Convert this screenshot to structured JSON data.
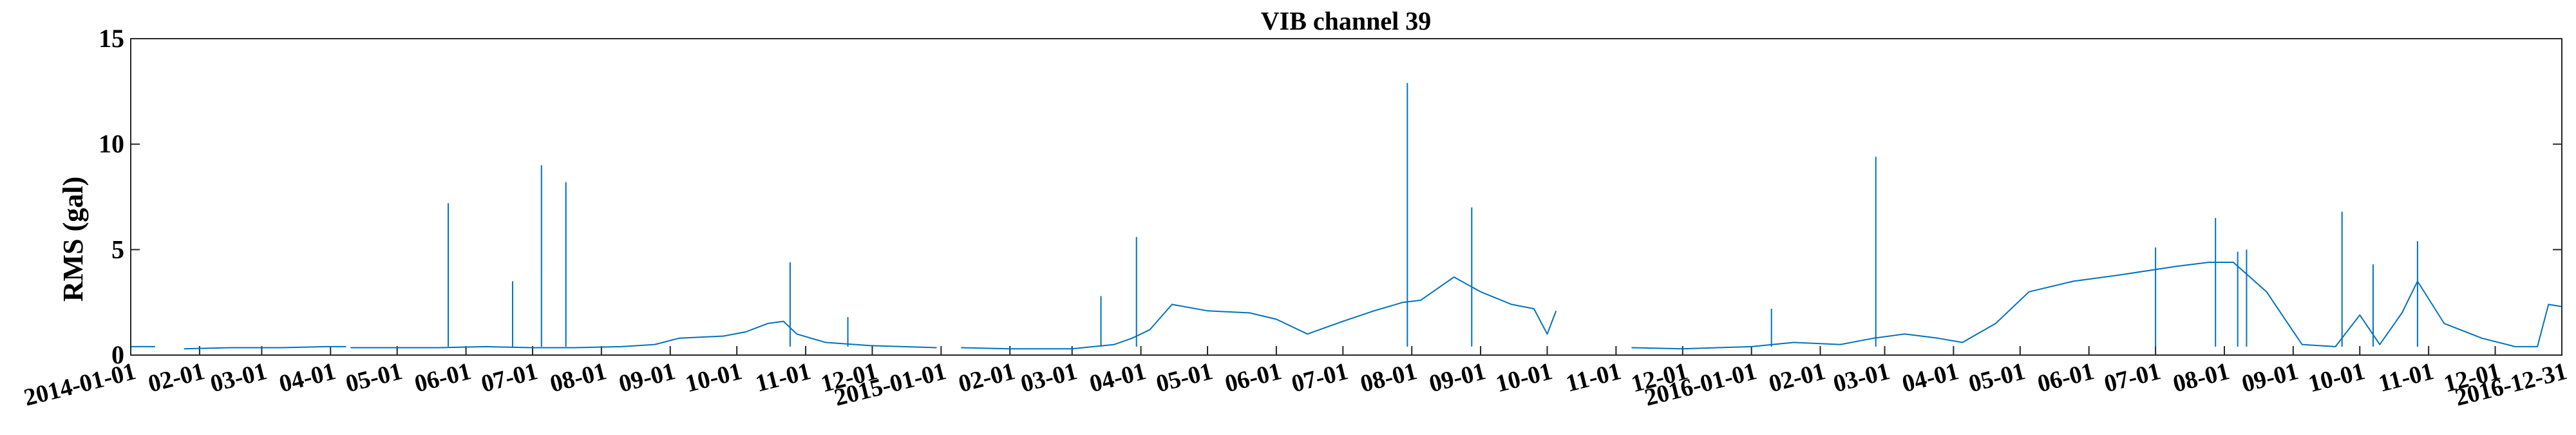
{
  "chart_data": {
    "type": "line",
    "title": "VIB channel 39",
    "xlabel": "",
    "ylabel": "RMS (gal)",
    "xlim": [
      "2014-01-01",
      "2016-12-31"
    ],
    "ylim": [
      0,
      15
    ],
    "yticks": [
      0,
      5,
      10,
      15
    ],
    "xtick_dates": [
      "2014-01-01",
      "2014-02-01",
      "2014-03-01",
      "2014-04-01",
      "2014-05-01",
      "2014-06-01",
      "2014-07-01",
      "2014-08-01",
      "2014-09-01",
      "2014-10-01",
      "2014-11-01",
      "2014-12-01",
      "2015-01-01",
      "2015-02-01",
      "2015-03-01",
      "2015-04-01",
      "2015-05-01",
      "2015-06-01",
      "2015-07-01",
      "2015-08-01",
      "2015-09-01",
      "2015-10-01",
      "2015-11-01",
      "2015-12-01",
      "2016-01-01",
      "2016-02-01",
      "2016-03-01",
      "2016-04-01",
      "2016-05-01",
      "2016-06-01",
      "2016-07-01",
      "2016-08-01",
      "2016-09-01",
      "2016-10-01",
      "2016-11-01",
      "2016-12-01",
      "2016-12-31"
    ],
    "xtick_labels": [
      "2014-01-01",
      "02-01",
      "03-01",
      "04-01",
      "05-01",
      "06-01",
      "07-01",
      "08-01",
      "09-01",
      "10-01",
      "11-01",
      "12-01",
      "2015-01-01",
      "02-01",
      "03-01",
      "04-01",
      "05-01",
      "06-01",
      "07-01",
      "08-01",
      "09-01",
      "10-01",
      "11-01",
      "12-01",
      "2016-01-01",
      "02-01",
      "03-01",
      "04-01",
      "05-01",
      "06-01",
      "07-01",
      "08-01",
      "09-01",
      "10-01",
      "11-01",
      "12-01",
      "2016-12-31"
    ],
    "grid": false,
    "color": "#0072BD",
    "segments": [
      {
        "x": [
          "2014-01-01",
          "2014-01-10",
          "2014-01-12"
        ],
        "y": [
          0.4,
          0.4,
          0.4
        ]
      },
      {
        "x": [
          "2014-01-25",
          "2014-02-15",
          "2014-03-10",
          "2014-03-30",
          "2014-04-08"
        ],
        "y": [
          0.3,
          0.35,
          0.35,
          0.4,
          0.4
        ]
      },
      {
        "x": [
          "2014-04-10",
          "2014-05-01",
          "2014-05-20",
          "2014-06-10",
          "2014-07-01",
          "2014-07-20",
          "2014-08-10",
          "2014-08-25",
          "2014-09-05",
          "2014-09-25",
          "2014-10-05",
          "2014-10-15",
          "2014-10-22",
          "2014-10-28",
          "2014-11-10",
          "2014-11-30",
          "2014-12-15",
          "2014-12-30"
        ],
        "y": [
          0.35,
          0.35,
          0.35,
          0.4,
          0.35,
          0.35,
          0.4,
          0.5,
          0.8,
          0.9,
          1.1,
          1.5,
          1.6,
          1.0,
          0.6,
          0.45,
          0.4,
          0.35
        ]
      },
      {
        "x": [
          "2015-01-10",
          "2015-02-01",
          "2015-03-01",
          "2015-03-20",
          "2015-03-28",
          "2015-04-05",
          "2015-04-15",
          "2015-05-01",
          "2015-05-20",
          "2015-06-01",
          "2015-06-15",
          "2015-07-01",
          "2015-07-15",
          "2015-07-28",
          "2015-08-05",
          "2015-08-20",
          "2015-09-01",
          "2015-09-15",
          "2015-09-25",
          "2015-10-01",
          "2015-10-05"
        ],
        "y": [
          0.35,
          0.3,
          0.3,
          0.5,
          0.8,
          1.2,
          2.4,
          2.1,
          2.0,
          1.7,
          1.0,
          1.6,
          2.1,
          2.5,
          2.6,
          3.7,
          3.0,
          2.4,
          2.2,
          1.0,
          2.1
        ]
      },
      {
        "x": [
          "2015-11-08",
          "2015-12-01",
          "2016-01-01",
          "2016-01-20",
          "2016-02-10",
          "2016-02-25",
          "2016-03-10",
          "2016-03-25",
          "2016-04-05",
          "2016-04-20",
          "2016-05-05",
          "2016-05-25",
          "2016-06-15",
          "2016-07-10",
          "2016-07-25",
          "2016-08-05",
          "2016-08-20",
          "2016-09-05",
          "2016-09-20",
          "2016-10-01",
          "2016-10-10",
          "2016-10-20",
          "2016-10-27",
          "2016-11-08",
          "2016-11-25",
          "2016-12-10",
          "2016-12-20",
          "2016-12-25",
          "2016-12-31"
        ],
        "y": [
          0.35,
          0.3,
          0.4,
          0.6,
          0.5,
          0.8,
          1.0,
          0.8,
          0.6,
          1.5,
          3.0,
          3.5,
          3.8,
          4.2,
          4.4,
          4.4,
          3.0,
          0.5,
          0.4,
          1.9,
          0.5,
          2.0,
          3.5,
          1.5,
          0.8,
          0.4,
          0.4,
          2.4,
          2.3
        ]
      }
    ],
    "spikes": [
      {
        "x": "2014-05-24",
        "y": 7.2
      },
      {
        "x": "2014-06-22",
        "y": 3.5
      },
      {
        "x": "2014-07-05",
        "y": 9.0
      },
      {
        "x": "2014-07-16",
        "y": 8.2
      },
      {
        "x": "2014-10-25",
        "y": 4.4
      },
      {
        "x": "2014-11-20",
        "y": 1.8
      },
      {
        "x": "2015-03-14",
        "y": 2.8
      },
      {
        "x": "2015-03-30",
        "y": 5.6
      },
      {
        "x": "2015-07-30",
        "y": 12.9
      },
      {
        "x": "2015-08-28",
        "y": 7.0
      },
      {
        "x": "2016-01-10",
        "y": 2.2
      },
      {
        "x": "2016-02-26",
        "y": 9.4
      },
      {
        "x": "2016-07-01",
        "y": 5.1
      },
      {
        "x": "2016-07-28",
        "y": 6.5
      },
      {
        "x": "2016-08-07",
        "y": 4.9
      },
      {
        "x": "2016-08-11",
        "y": 5.0
      },
      {
        "x": "2016-09-23",
        "y": 6.8
      },
      {
        "x": "2016-10-07",
        "y": 4.3
      },
      {
        "x": "2016-10-27",
        "y": 5.4
      }
    ]
  }
}
